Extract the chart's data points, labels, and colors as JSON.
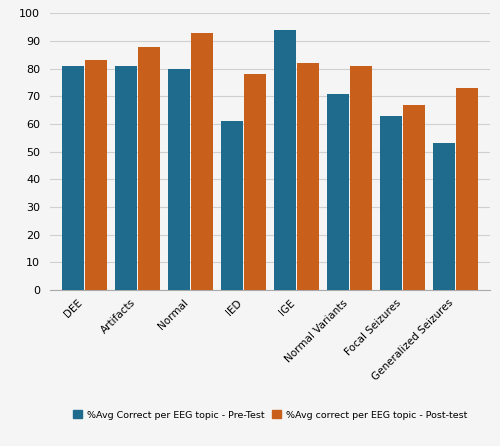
{
  "categories": [
    "DEE",
    "Artifacts",
    "Normal",
    "IED",
    "IGE",
    "Normal Variants",
    "Focal Seizures",
    "Generalized Seizures"
  ],
  "pre_test": [
    81,
    81,
    80,
    61,
    94,
    71,
    63,
    53
  ],
  "post_test": [
    83,
    88,
    93,
    78,
    82,
    81,
    67,
    73
  ],
  "pre_color": "#1F6B8E",
  "post_color": "#C85F1A",
  "ylabel_ticks": [
    0,
    10,
    20,
    30,
    40,
    50,
    60,
    70,
    80,
    90,
    100
  ],
  "legend_pre": "%Avg Correct per EEG topic - Pre-Test",
  "legend_post": "%Avg correct per EEG topic - Post-test",
  "background_color": "#f5f5f5",
  "grid_color": "#d0d0d0"
}
